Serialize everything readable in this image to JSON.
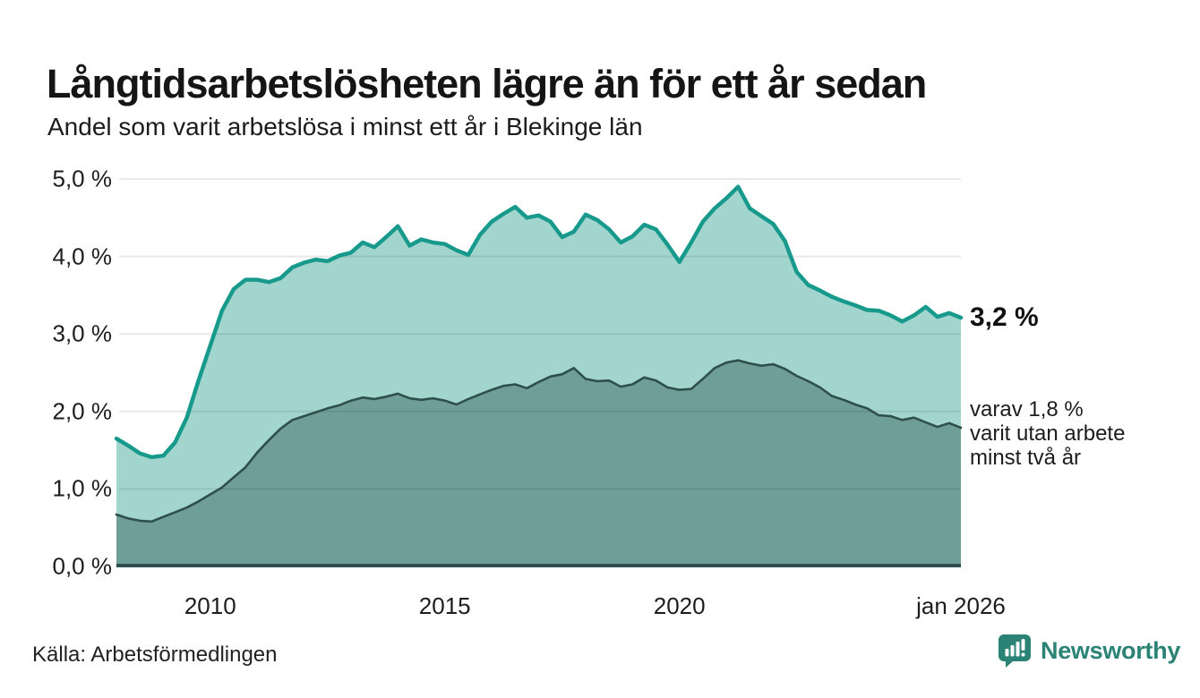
{
  "header": {
    "title": "Långtidsarbetslösheten lägre än för ett år sedan",
    "subtitle": "Andel som varit arbetslösa i minst ett år i Blekinge län"
  },
  "footer": {
    "source": "Källa: Arbetsförmedlingen",
    "brand": "Newsworthy",
    "brand_icon": "bar-chart-speech-bubble-icon",
    "brand_color": "#2a8375"
  },
  "colors": {
    "line_total": "#179a8c",
    "fill_total": "#a2d5ce",
    "line_two_years": "#2e4f4b",
    "fill_two_years": "#6f9e99",
    "gridline": "rgba(30,30,30,0.10)",
    "baseline": "#2e4f4b",
    "text": "#1c1c1c"
  },
  "chart_data": {
    "type": "area",
    "title": "Långtidsarbetslösheten lägre än för ett år sedan",
    "subtitle": "Andel som varit arbetslösa i minst ett år i Blekinge län",
    "xlabel": "",
    "ylabel": "",
    "unit": "%",
    "grid": "horizontal",
    "legend_position": "right-edge-annotations",
    "x_range": [
      2008.0,
      2026.0
    ],
    "ylim": [
      0.0,
      5.0
    ],
    "y_ticks": [
      {
        "label": "5,0 %",
        "value": 5.0
      },
      {
        "label": "4,0 %",
        "value": 4.0
      },
      {
        "label": "3,0 %",
        "value": 3.0
      },
      {
        "label": "2,0 %",
        "value": 2.0
      },
      {
        "label": "1,0 %",
        "value": 1.0
      },
      {
        "label": "0,0 %",
        "value": 0.0
      }
    ],
    "x_ticks": [
      {
        "label": "2010",
        "value": 2010
      },
      {
        "label": "2015",
        "value": 2015
      },
      {
        "label": "2020",
        "value": 2020
      },
      {
        "label": "jan 2026",
        "value": 2026
      }
    ],
    "x": [
      2008,
      2008.25,
      2008.5,
      2008.75,
      2009,
      2009.25,
      2009.5,
      2009.75,
      2010,
      2010.25,
      2010.5,
      2010.75,
      2011,
      2011.25,
      2011.5,
      2011.75,
      2012,
      2012.25,
      2012.5,
      2012.75,
      2013,
      2013.25,
      2013.5,
      2013.75,
      2014,
      2014.25,
      2014.5,
      2014.75,
      2015,
      2015.25,
      2015.5,
      2015.75,
      2016,
      2016.25,
      2016.5,
      2016.75,
      2017,
      2017.25,
      2017.5,
      2017.75,
      2018,
      2018.25,
      2018.5,
      2018.75,
      2019,
      2019.25,
      2019.5,
      2019.75,
      2020,
      2020.25,
      2020.5,
      2020.75,
      2021,
      2021.25,
      2021.5,
      2021.75,
      2022,
      2022.25,
      2022.5,
      2022.75,
      2023,
      2023.25,
      2023.5,
      2023.75,
      2024,
      2024.25,
      2024.5,
      2024.75,
      2025,
      2025.25,
      2025.5,
      2025.75,
      2026
    ],
    "series": [
      {
        "name": "Arbetslösa minst ett år",
        "end_label": "3,2 %",
        "end_value": 3.2,
        "color": "#179a8c",
        "fill": "#a2d5ce",
        "values": [
          1.65,
          1.56,
          1.46,
          1.41,
          1.43,
          1.6,
          1.92,
          2.4,
          2.85,
          3.3,
          3.58,
          3.7,
          3.7,
          3.67,
          3.72,
          3.86,
          3.92,
          3.96,
          3.94,
          4.01,
          4.05,
          4.18,
          4.12,
          4.25,
          4.39,
          4.14,
          4.22,
          4.18,
          4.16,
          4.08,
          4.02,
          4.28,
          4.45,
          4.55,
          4.64,
          4.5,
          4.53,
          4.45,
          4.25,
          4.32,
          4.54,
          4.47,
          4.35,
          4.18,
          4.26,
          4.41,
          4.35,
          4.15,
          3.93,
          4.18,
          4.45,
          4.62,
          4.75,
          4.9,
          4.62,
          4.52,
          4.42,
          4.2,
          3.8,
          3.63,
          3.56,
          3.48,
          3.42,
          3.37,
          3.31,
          3.3,
          3.24,
          3.16,
          3.24,
          3.35,
          3.22,
          3.27,
          3.21
        ]
      },
      {
        "name": "Arbetslösa minst två år",
        "end_label_lines": [
          "varav 1,8 %",
          "varit utan arbete",
          "minst två år"
        ],
        "end_value": 1.8,
        "color": "#2e4f4b",
        "fill": "#6f9e99",
        "values": [
          0.67,
          0.62,
          0.59,
          0.58,
          0.64,
          0.7,
          0.76,
          0.84,
          0.93,
          1.02,
          1.15,
          1.28,
          1.47,
          1.63,
          1.78,
          1.89,
          1.94,
          1.99,
          2.04,
          2.08,
          2.14,
          2.18,
          2.16,
          2.19,
          2.23,
          2.17,
          2.15,
          2.17,
          2.14,
          2.09,
          2.16,
          2.22,
          2.28,
          2.33,
          2.35,
          2.3,
          2.38,
          2.45,
          2.48,
          2.56,
          2.42,
          2.39,
          2.4,
          2.32,
          2.35,
          2.44,
          2.4,
          2.31,
          2.28,
          2.29,
          2.42,
          2.56,
          2.63,
          2.66,
          2.62,
          2.59,
          2.61,
          2.55,
          2.46,
          2.39,
          2.31,
          2.2,
          2.15,
          2.09,
          2.04,
          1.95,
          1.94,
          1.89,
          1.92,
          1.86,
          1.8,
          1.85,
          1.79
        ]
      }
    ]
  }
}
